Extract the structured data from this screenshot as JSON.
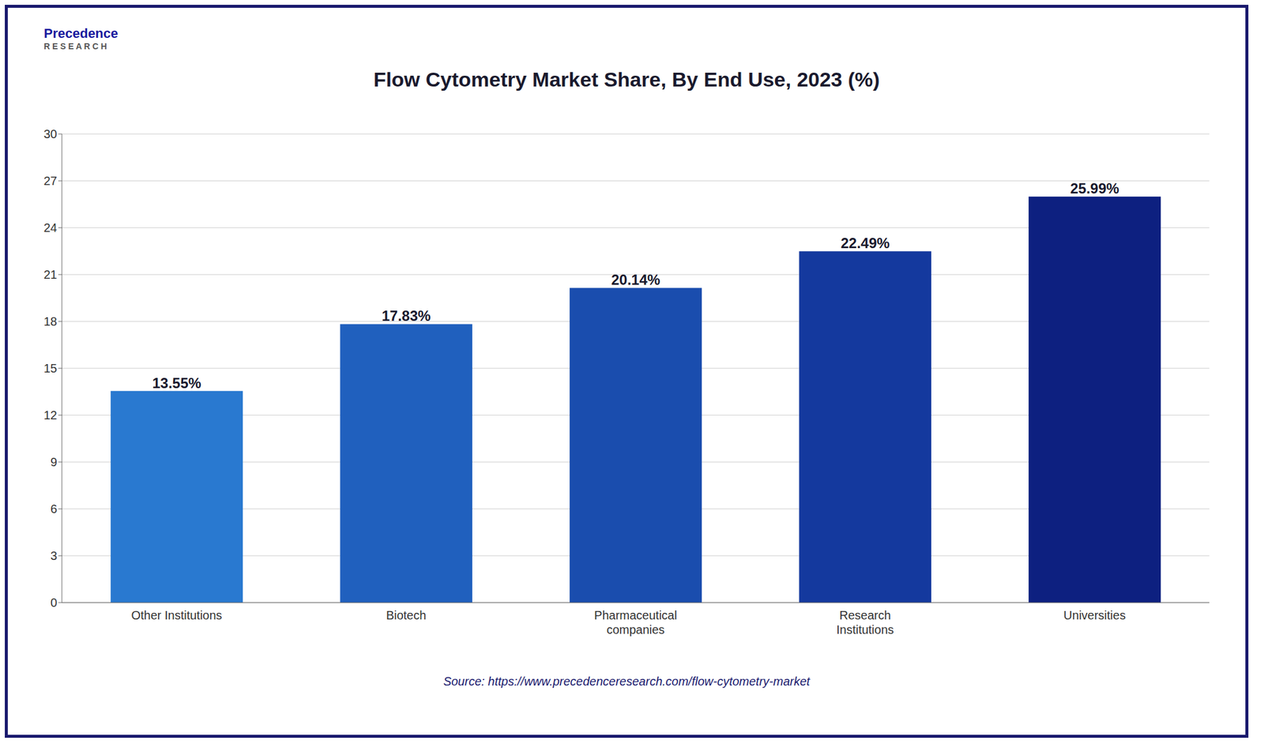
{
  "chart_data": {
    "type": "bar",
    "title": "Flow Cytometry Market Share, By End Use, 2023 (%)",
    "categories": [
      "Other Institutions",
      "Biotech",
      "Pharmaceutical\ncompanies",
      "Research\nInstitutions",
      "Universities"
    ],
    "values": [
      13.55,
      17.83,
      20.14,
      22.49,
      25.99
    ],
    "value_labels": [
      "13.55%",
      "17.83%",
      "20.14%",
      "22.49%",
      "25.99%"
    ],
    "data_labels": true,
    "colors": [
      "#2979D0",
      "#2060BE",
      "#1A4DAE",
      "#14399E",
      "#0D2080"
    ],
    "ylim": [
      0,
      30
    ],
    "yticks": [
      0,
      3,
      6,
      9,
      12,
      15,
      18,
      21,
      24,
      27,
      30
    ],
    "grid": true,
    "annotations": [
      "Precedence",
      "R E S E A R C H",
      "Source: https://www.precedenceresearch.com/flow-cytometry-market"
    ]
  }
}
